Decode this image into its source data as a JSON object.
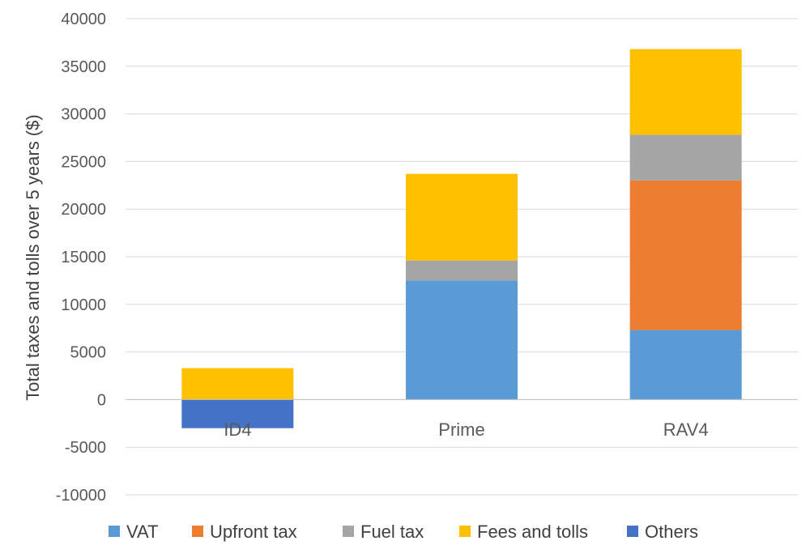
{
  "chart_data": {
    "type": "bar",
    "stacked": true,
    "title": "",
    "xlabel": "",
    "ylabel": "Total taxes and tolls over 5 years ($)",
    "ylim": [
      -10000,
      40000
    ],
    "yticks": [
      -10000,
      -5000,
      0,
      5000,
      10000,
      15000,
      20000,
      25000,
      30000,
      35000,
      40000
    ],
    "grid": true,
    "legend_position": "bottom",
    "categories": [
      "ID4",
      "Prime",
      "RAV4"
    ],
    "series": [
      {
        "name": "VAT",
        "color": "#5B9BD5",
        "values": [
          0,
          12500,
          7300
        ]
      },
      {
        "name": "Upfront tax",
        "color": "#ED7D31",
        "values": [
          0,
          0,
          15700
        ]
      },
      {
        "name": "Fuel tax",
        "color": "#A5A5A5",
        "values": [
          0,
          2100,
          4800
        ]
      },
      {
        "name": "Fees and tolls",
        "color": "#FFC000",
        "values": [
          3300,
          9100,
          9000
        ]
      },
      {
        "name": "Others",
        "color": "#4472C4",
        "values": [
          -3000,
          0,
          0
        ]
      }
    ]
  }
}
